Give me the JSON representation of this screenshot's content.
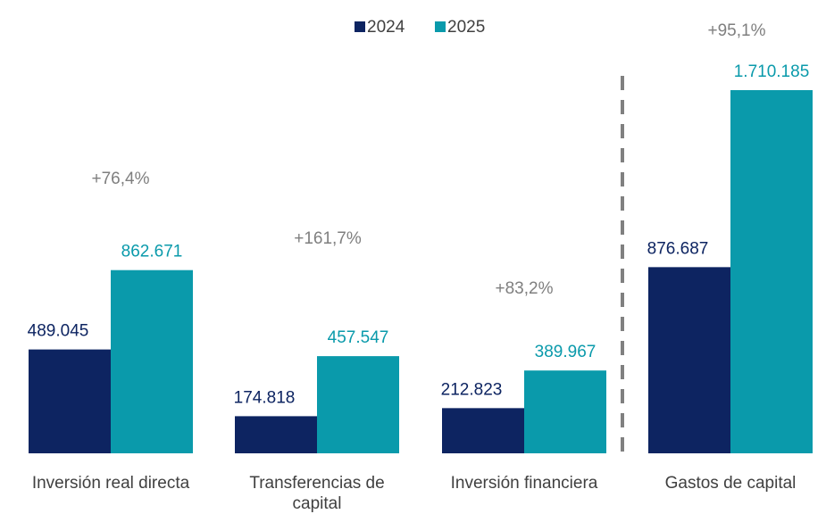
{
  "chart_data": {
    "type": "bar",
    "categories": [
      "Inversión real directa",
      "Transferencias de capital",
      "Inversión financiera",
      "Gastos de capital"
    ],
    "series": [
      {
        "name": "2024",
        "color": "#0d2461",
        "values": [
          489045,
          174818,
          212823,
          876687
        ],
        "value_labels": [
          "489.045",
          "174.818",
          "212.823",
          "876.687"
        ]
      },
      {
        "name": "2025",
        "color": "#0a9aab",
        "values": [
          862671,
          457547,
          389967,
          1710185
        ],
        "value_labels": [
          "862.671",
          "457.547",
          "389.967",
          "1.710.185"
        ]
      }
    ],
    "annotations": [
      "+76,4%",
      "+161,7%",
      "+83,2%",
      "+95,1%"
    ],
    "annotation_color": "#7f7f7f"
  }
}
